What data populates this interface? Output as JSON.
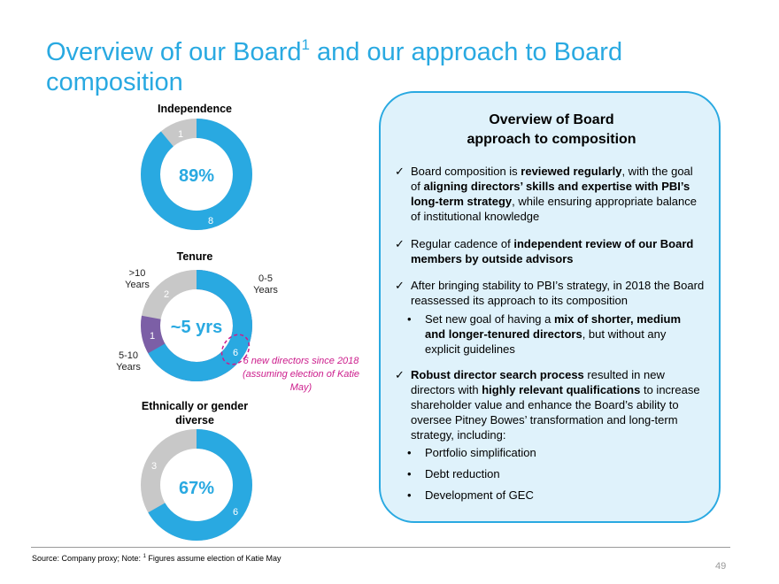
{
  "title": {
    "text": "Overview of our Board",
    "sup": "1",
    "rest": " and our approach to Board composition"
  },
  "independence": {
    "heading": "Independence",
    "center": "89%",
    "seg_grey": "1",
    "seg_blue": "8"
  },
  "tenure": {
    "heading": "Tenure",
    "center": "~5 yrs",
    "seg_grey": "2",
    "seg_purple": "1",
    "seg_blue": "6",
    "cat_over10": ">10\nYears",
    "cat_0_5": "0-5\nYears",
    "cat_5_10": "5-10\nYears",
    "callout": "6 new directors since 2018 (assuming election of Katie May)"
  },
  "diversity": {
    "heading_line1": "Ethnically or gender",
    "heading_line2": "diverse",
    "center": "67%",
    "seg_grey": "3",
    "seg_blue": "6"
  },
  "panel": {
    "title_line1": "Overview of Board",
    "title_line2": "approach to composition",
    "check": "✓",
    "bullet": "•",
    "items": [
      {
        "t1": "Board composition is ",
        "b1": "reviewed regularly",
        "t2": ", with the goal of ",
        "b2": "aligning directors’ skills and expertise with PBI’s long-term strategy",
        "t3": ", while ensuring appropriate balance of institutional knowledge"
      },
      {
        "t1": "Regular cadence of ",
        "b1": "independent review of our Board members by outside advisors"
      },
      {
        "t1": "After bringing stability to PBI’s strategy, in 2018 the Board reassessed its approach to its composition"
      },
      {
        "b1": "Robust director search process",
        "t1": " resulted in new directors with ",
        "b2": "highly relevant qualifications",
        "t2": " to increase shareholder value and enhance the Board’s ability to oversee Pitney Bowes’ transformation and long-term strategy, including:"
      }
    ],
    "sub_goal": {
      "t1": "Set new goal of having a ",
      "b1": "mix of shorter, medium and longer-tenured directors",
      "t2": ", but without any explicit guidelines"
    },
    "sub_list": [
      "Portfolio simplification",
      "Debt reduction",
      "Development of GEC"
    ]
  },
  "footer": {
    "source_prefix": "Source: Company proxy; Note: ",
    "sup": "1",
    "source_rest": " Figures assume election of Katie May",
    "page": "49"
  },
  "colors": {
    "accent": "#29a9e1",
    "grey": "#c8c8c8",
    "purple": "#7c5fa6",
    "magenta": "#cc1d8c"
  }
}
